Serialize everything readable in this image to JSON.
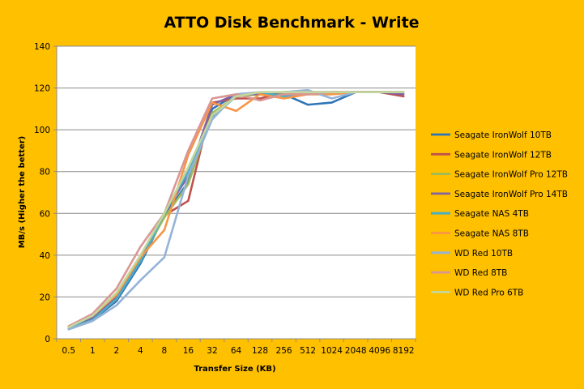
{
  "chart_data": {
    "type": "line",
    "title": "ATTO Disk Benchmark - Write",
    "xlabel": "Transfer Size (KB)",
    "ylabel": "MB/s (Higher the better)",
    "categories": [
      "0.5",
      "1",
      "2",
      "4",
      "8",
      "16",
      "32",
      "64",
      "128",
      "256",
      "512",
      "1024",
      "2048",
      "4096",
      "8192"
    ],
    "ylim": [
      0,
      140
    ],
    "yticks": [
      0,
      20,
      40,
      60,
      80,
      100,
      120,
      140
    ],
    "grid": "horizontal",
    "legend_position": "right",
    "series": [
      {
        "name": "Seagate IronWolf 10TB",
        "color": "#2E75B6",
        "values": [
          5,
          9,
          18,
          36,
          59,
          75,
          110,
          117,
          117,
          117,
          112,
          113,
          118,
          118,
          118
        ]
      },
      {
        "name": "Seagate IronWolf 12TB",
        "color": "#C0504D",
        "values": [
          5,
          9,
          19,
          39,
          59,
          66,
          113,
          115,
          115,
          118,
          118,
          118,
          118,
          118,
          116
        ]
      },
      {
        "name": "Seagate IronWolf Pro 12TB",
        "color": "#9BBB59",
        "values": [
          5.5,
          10,
          20,
          38,
          58,
          74,
          108,
          116,
          117,
          117,
          117,
          118,
          118,
          118,
          118
        ]
      },
      {
        "name": "Seagate IronWolf Pro 14TB",
        "color": "#8064A2",
        "values": [
          5,
          10,
          20,
          39,
          60,
          78,
          112,
          117,
          117,
          118,
          118,
          118,
          118,
          118,
          117
        ]
      },
      {
        "name": "Seagate NAS 4TB",
        "color": "#4BACC6",
        "values": [
          5,
          9,
          19,
          37,
          60,
          80,
          106,
          116,
          118,
          116,
          117,
          117,
          118,
          118,
          118
        ]
      },
      {
        "name": "Seagate NAS 8TB",
        "color": "#F79646",
        "values": [
          6,
          11,
          21,
          39,
          52,
          88,
          113,
          109,
          117,
          115,
          117,
          117,
          118,
          118,
          118
        ]
      },
      {
        "name": "WD Red 10TB",
        "color": "#95B3D7",
        "values": [
          4.5,
          8.5,
          16,
          28,
          39,
          78,
          105,
          117,
          118,
          118,
          119,
          115,
          118,
          118,
          118
        ]
      },
      {
        "name": "WD Red 8TB",
        "color": "#D99694",
        "values": [
          6,
          12,
          24,
          44,
          60,
          90,
          115,
          117,
          114,
          117,
          117,
          118,
          118,
          118,
          118
        ]
      },
      {
        "name": "WD Red Pro 6TB",
        "color": "#C3D69B",
        "values": [
          5.5,
          11,
          22,
          40,
          60,
          82,
          107,
          116,
          118,
          118,
          118,
          118,
          118,
          118,
          118
        ]
      }
    ]
  }
}
